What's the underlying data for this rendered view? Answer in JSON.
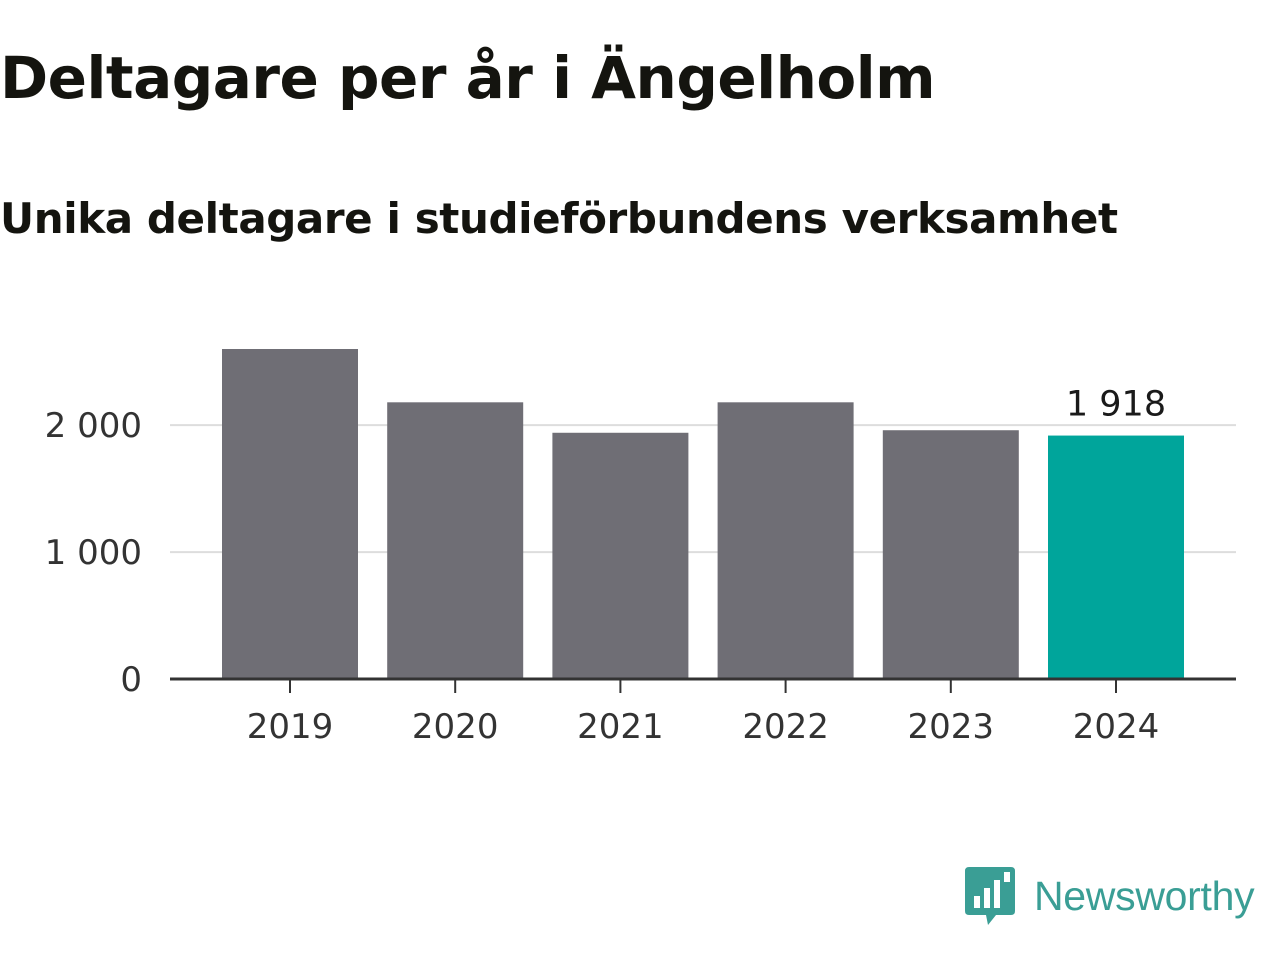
{
  "header": {
    "title": "Deltagare per år i Ängelholm",
    "subtitle": "Unika deltagare i studieförbundens verksamhet"
  },
  "brand": {
    "name": "Newsworthy",
    "logo_icon": "bar-chart-speech-bubble-icon",
    "color": "#3a9e95"
  },
  "colors": {
    "bar_default": "#6f6e75",
    "bar_highlight": "#00a59b",
    "gridline": "#dddddd",
    "axis": "#333333",
    "tick_text": "#333333",
    "label_text": "#1a1a1a"
  },
  "chart_data": {
    "type": "bar",
    "title": "Deltagare per år i Ängelholm",
    "subtitle": "Unika deltagare i studieförbundens verksamhet",
    "xlabel": "",
    "ylabel": "",
    "categories": [
      "2019",
      "2020",
      "2021",
      "2022",
      "2023",
      "2024"
    ],
    "values": [
      2600,
      2180,
      1940,
      2180,
      1960,
      1918
    ],
    "highlight_index": 5,
    "data_labels": [
      {
        "index": 5,
        "text": "1 918"
      }
    ],
    "ylim": [
      0,
      2600
    ],
    "yticks": [
      0,
      1000,
      2000
    ],
    "ytick_labels": [
      "0",
      "1 000",
      "2 000"
    ],
    "grid": true,
    "legend": "none"
  }
}
